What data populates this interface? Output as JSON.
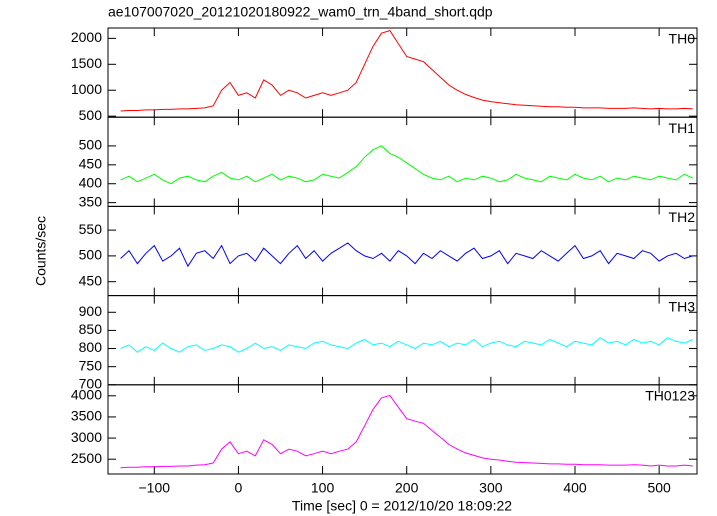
{
  "chart_data": [
    {
      "type": "line",
      "title": "ae107007020_20121020180922_wam0_trn_4band_short.qdp",
      "x": [
        -140,
        -130,
        -120,
        -110,
        -100,
        -90,
        -80,
        -70,
        -60,
        -50,
        -40,
        -30,
        -20,
        -10,
        0,
        10,
        20,
        30,
        40,
        50,
        60,
        70,
        80,
        90,
        100,
        110,
        120,
        130,
        140,
        150,
        160,
        170,
        180,
        190,
        200,
        210,
        220,
        230,
        240,
        250,
        260,
        270,
        280,
        290,
        300,
        310,
        320,
        330,
        340,
        350,
        360,
        370,
        380,
        390,
        400,
        410,
        420,
        430,
        440,
        450,
        460,
        470,
        480,
        490,
        500,
        510,
        520,
        530,
        540
      ],
      "series": [
        {
          "name": "TH0",
          "color": "#ff0000",
          "values": [
            600,
            610,
            610,
            620,
            620,
            630,
            630,
            640,
            640,
            650,
            660,
            700,
            1000,
            1150,
            900,
            950,
            850,
            1200,
            1100,
            900,
            1000,
            950,
            850,
            900,
            950,
            900,
            950,
            1000,
            1150,
            1500,
            1850,
            2100,
            2150,
            1900,
            1650,
            1600,
            1550,
            1400,
            1250,
            1100,
            1000,
            920,
            860,
            810,
            780,
            760,
            740,
            720,
            710,
            700,
            690,
            680,
            680,
            670,
            670,
            660,
            660,
            660,
            650,
            650,
            650,
            660,
            650,
            640,
            650,
            640,
            640,
            650,
            640
          ]
        }
      ],
      "xlim": [
        -155,
        545
      ],
      "ylim": [
        480,
        2200
      ],
      "yticks": [
        500,
        1000,
        1500,
        2000
      ]
    },
    {
      "type": "line",
      "x": [
        -140,
        -130,
        -120,
        -110,
        -100,
        -90,
        -80,
        -70,
        -60,
        -50,
        -40,
        -30,
        -20,
        -10,
        0,
        10,
        20,
        30,
        40,
        50,
        60,
        70,
        80,
        90,
        100,
        110,
        120,
        130,
        140,
        150,
        160,
        170,
        180,
        190,
        200,
        210,
        220,
        230,
        240,
        250,
        260,
        270,
        280,
        290,
        300,
        310,
        320,
        330,
        340,
        350,
        360,
        370,
        380,
        390,
        400,
        410,
        420,
        430,
        440,
        450,
        460,
        470,
        480,
        490,
        500,
        510,
        520,
        530,
        540
      ],
      "series": [
        {
          "name": "TH1",
          "color": "#00ff00",
          "values": [
            410,
            420,
            405,
            415,
            425,
            410,
            400,
            415,
            420,
            410,
            405,
            420,
            430,
            415,
            410,
            420,
            405,
            415,
            425,
            410,
            420,
            415,
            405,
            410,
            425,
            420,
            415,
            430,
            445,
            470,
            490,
            500,
            480,
            470,
            455,
            440,
            425,
            415,
            410,
            420,
            405,
            415,
            410,
            420,
            415,
            405,
            410,
            425,
            415,
            410,
            405,
            420,
            415,
            410,
            425,
            415,
            410,
            420,
            405,
            415,
            410,
            420,
            415,
            410,
            420,
            415,
            410,
            425,
            415
          ]
        }
      ],
      "xlim": [
        -155,
        545
      ],
      "ylim": [
        340,
        576
      ],
      "yticks": [
        350,
        400,
        450,
        500
      ]
    },
    {
      "type": "line",
      "y_label": "Counts/sec",
      "x": [
        -140,
        -130,
        -120,
        -110,
        -100,
        -90,
        -80,
        -70,
        -60,
        -50,
        -40,
        -30,
        -20,
        -10,
        0,
        10,
        20,
        30,
        40,
        50,
        60,
        70,
        80,
        90,
        100,
        110,
        120,
        130,
        140,
        150,
        160,
        170,
        180,
        190,
        200,
        210,
        220,
        230,
        240,
        250,
        260,
        270,
        280,
        290,
        300,
        310,
        320,
        330,
        340,
        350,
        360,
        370,
        380,
        390,
        400,
        410,
        420,
        430,
        440,
        450,
        460,
        470,
        480,
        490,
        500,
        510,
        520,
        530,
        540
      ],
      "series": [
        {
          "name": "TH2",
          "color": "#0000ff",
          "values": [
            495,
            510,
            485,
            505,
            520,
            490,
            500,
            515,
            480,
            505,
            510,
            495,
            520,
            485,
            500,
            505,
            490,
            515,
            500,
            485,
            505,
            520,
            495,
            510,
            490,
            505,
            515,
            525,
            510,
            500,
            495,
            505,
            490,
            510,
            500,
            485,
            505,
            495,
            510,
            500,
            490,
            505,
            515,
            495,
            500,
            510,
            485,
            505,
            500,
            495,
            510,
            500,
            490,
            505,
            520,
            495,
            500,
            510,
            485,
            505,
            500,
            495,
            510,
            505,
            490,
            500,
            505,
            495,
            500
          ]
        }
      ],
      "xlim": [
        -155,
        545
      ],
      "ylim": [
        423,
        596
      ],
      "yticks": [
        450,
        500,
        550
      ]
    },
    {
      "type": "line",
      "x": [
        -140,
        -130,
        -120,
        -110,
        -100,
        -90,
        -80,
        -70,
        -60,
        -50,
        -40,
        -30,
        -20,
        -10,
        0,
        10,
        20,
        30,
        40,
        50,
        60,
        70,
        80,
        90,
        100,
        110,
        120,
        130,
        140,
        150,
        160,
        170,
        180,
        190,
        200,
        210,
        220,
        230,
        240,
        250,
        260,
        270,
        280,
        290,
        300,
        310,
        320,
        330,
        340,
        350,
        360,
        370,
        380,
        390,
        400,
        410,
        420,
        430,
        440,
        450,
        460,
        470,
        480,
        490,
        500,
        510,
        520,
        530,
        540
      ],
      "series": [
        {
          "name": "TH3",
          "color": "#00ffff",
          "values": [
            800,
            810,
            790,
            805,
            795,
            815,
            800,
            790,
            805,
            810,
            795,
            800,
            810,
            805,
            790,
            800,
            815,
            800,
            805,
            795,
            810,
            805,
            800,
            815,
            820,
            810,
            805,
            800,
            815,
            825,
            810,
            815,
            805,
            820,
            810,
            800,
            815,
            810,
            820,
            805,
            815,
            810,
            825,
            805,
            815,
            820,
            810,
            805,
            820,
            815,
            810,
            825,
            815,
            805,
            820,
            815,
            810,
            830,
            815,
            820,
            810,
            825,
            815,
            820,
            810,
            830,
            820,
            815,
            825
          ]
        }
      ],
      "xlim": [
        -155,
        545
      ],
      "ylim": [
        700,
        946
      ],
      "yticks": [
        700,
        750,
        800,
        850,
        900
      ]
    },
    {
      "type": "line",
      "x_label": "Time [sec] 0 = 2012/10/20 18:09:22",
      "x": [
        -140,
        -130,
        -120,
        -110,
        -100,
        -90,
        -80,
        -70,
        -60,
        -50,
        -40,
        -30,
        -20,
        -10,
        0,
        10,
        20,
        30,
        40,
        50,
        60,
        70,
        80,
        90,
        100,
        110,
        120,
        130,
        140,
        150,
        160,
        170,
        180,
        190,
        200,
        210,
        220,
        230,
        240,
        250,
        260,
        270,
        280,
        290,
        300,
        310,
        320,
        330,
        340,
        350,
        360,
        370,
        380,
        390,
        400,
        410,
        420,
        430,
        440,
        450,
        460,
        470,
        480,
        490,
        500,
        510,
        520,
        530,
        540
      ],
      "series": [
        {
          "name": "TH0123",
          "color": "#ff00ff",
          "values": [
            2300,
            2310,
            2310,
            2320,
            2320,
            2330,
            2330,
            2340,
            2340,
            2360,
            2370,
            2410,
            2740,
            2910,
            2630,
            2690,
            2580,
            2960,
            2850,
            2630,
            2740,
            2690,
            2580,
            2630,
            2690,
            2630,
            2690,
            2740,
            2910,
            3290,
            3680,
            3950,
            4010,
            3730,
            3460,
            3400,
            3350,
            3180,
            3020,
            2850,
            2740,
            2650,
            2590,
            2530,
            2500,
            2480,
            2450,
            2430,
            2420,
            2410,
            2400,
            2390,
            2390,
            2380,
            2380,
            2370,
            2370,
            2370,
            2360,
            2360,
            2360,
            2370,
            2360,
            2340,
            2360,
            2340,
            2340,
            2360,
            2340
          ]
        }
      ],
      "xlim": [
        -155,
        545
      ],
      "ylim": [
        2150,
        4260
      ],
      "yticks": [
        2500,
        3000,
        3500,
        4000
      ],
      "xticks": [
        {
          "value": -100,
          "label": "−100"
        },
        0,
        100,
        200,
        300,
        400,
        500
      ]
    }
  ]
}
